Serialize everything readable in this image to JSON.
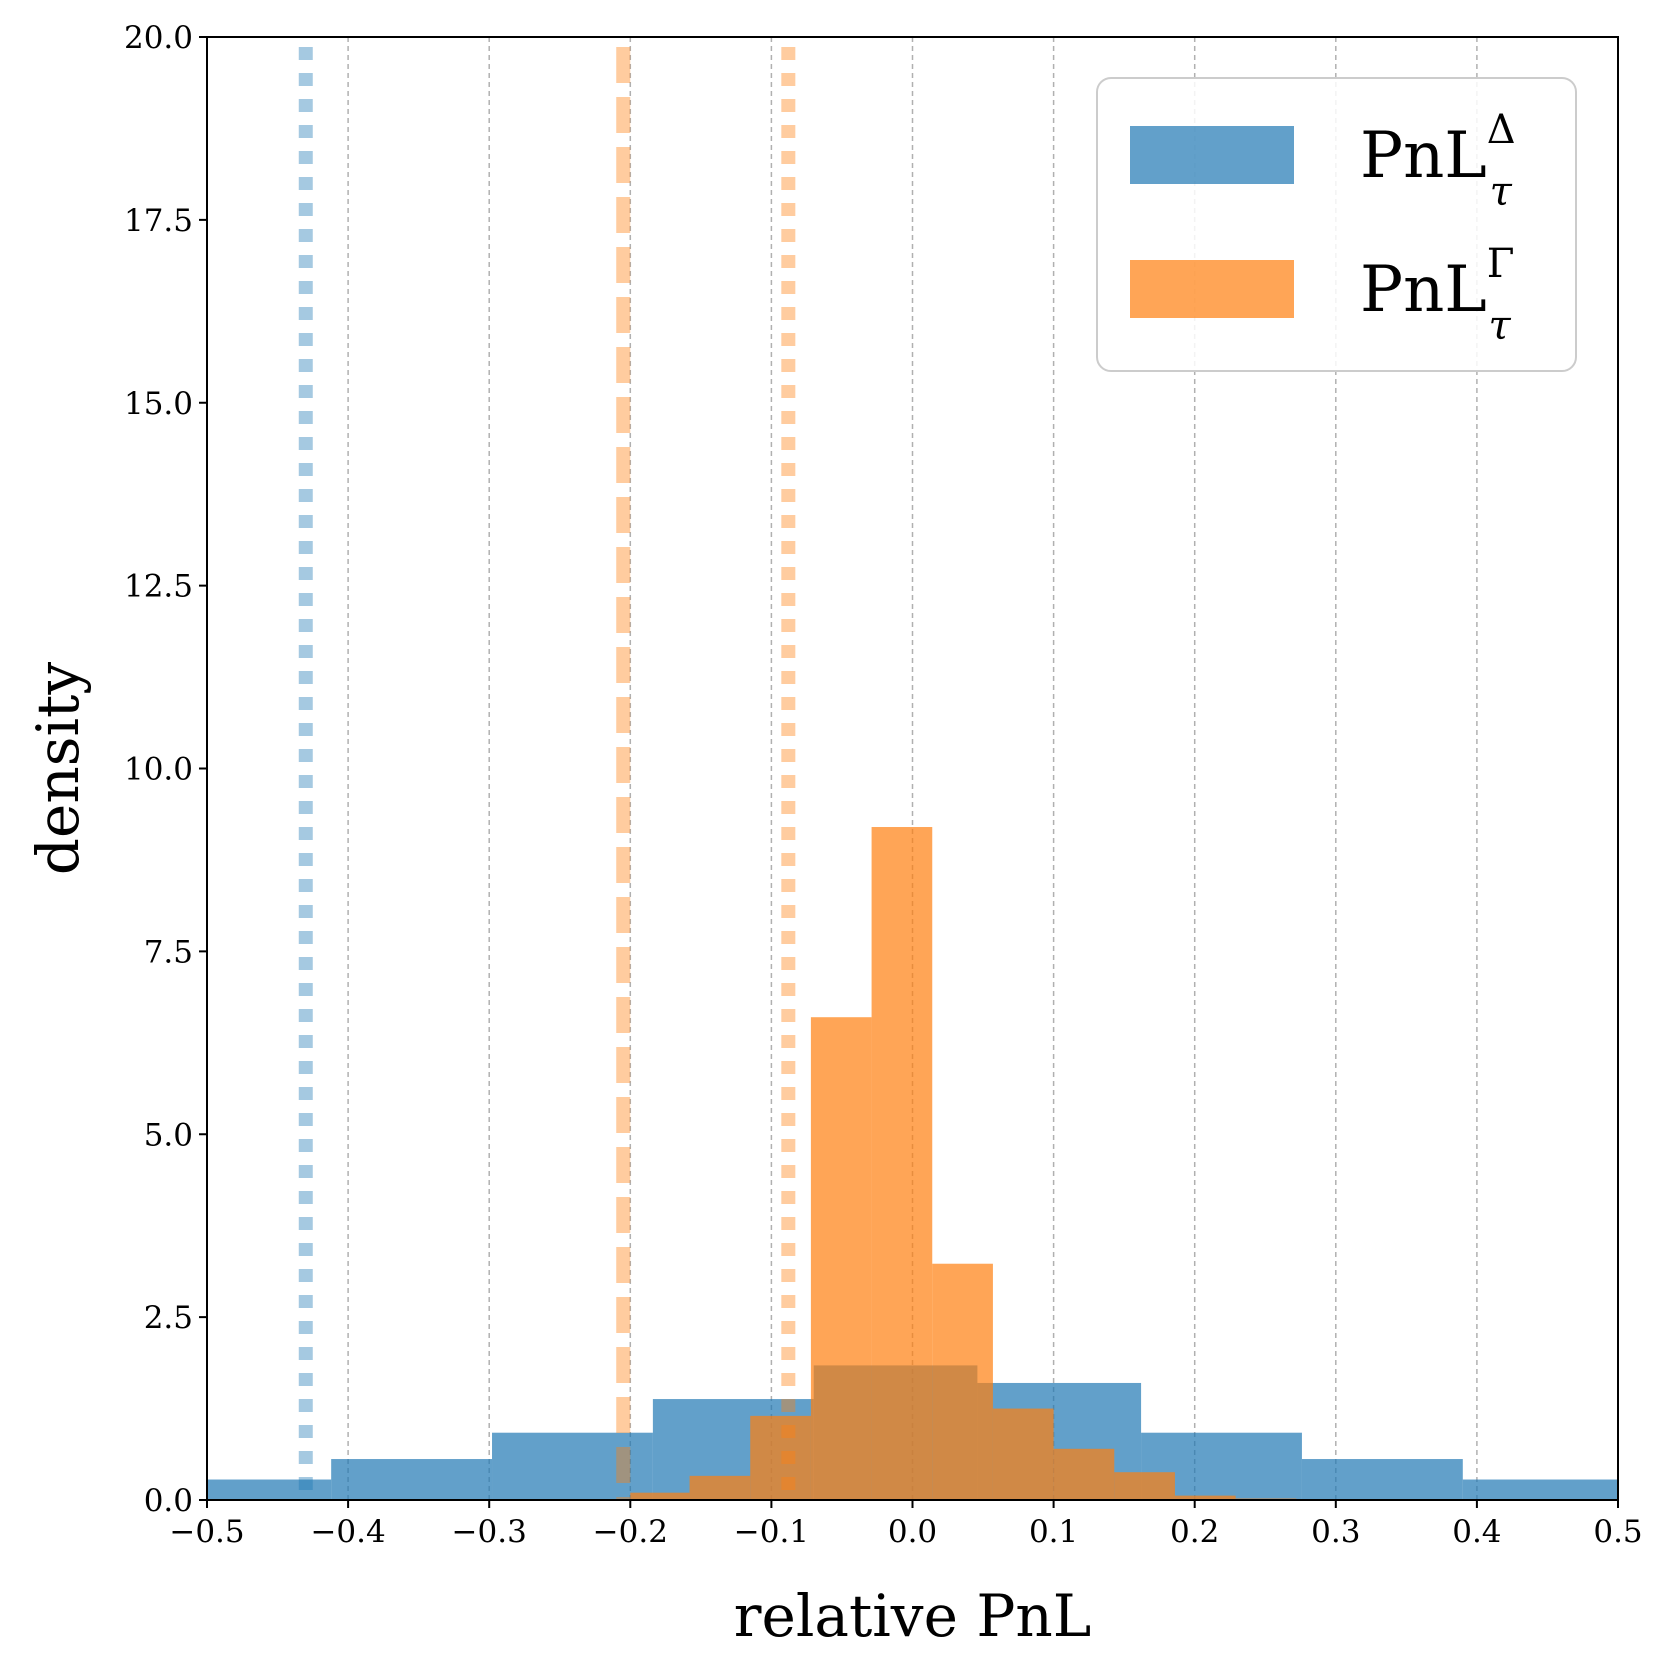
{
  "chart_data": {
    "type": "bar",
    "subtype": "histogram",
    "xlabel": "relative PnL",
    "ylabel": "density",
    "xlim": [
      -0.5,
      0.5
    ],
    "ylim": [
      0,
      20
    ],
    "xticks": [
      -0.5,
      -0.4,
      -0.3,
      -0.2,
      -0.1,
      0.0,
      0.1,
      0.2,
      0.3,
      0.4,
      0.5
    ],
    "xtick_labels": [
      "−0.5",
      "−0.4",
      "−0.3",
      "−0.2",
      "−0.1",
      "0.0",
      "0.1",
      "0.2",
      "0.3",
      "0.4",
      "0.5"
    ],
    "yticks": [
      0,
      2.5,
      5,
      7.5,
      10,
      12.5,
      15,
      17.5,
      20
    ],
    "ytick_labels": [
      "0.0",
      "2.5",
      "5.0",
      "7.5",
      "10.0",
      "12.5",
      "15.0",
      "17.5",
      "20.0"
    ],
    "grid": "x-dashed",
    "legend_placement": "top-right",
    "series": [
      {
        "name": "PnL",
        "name_sup": "Δ",
        "name_sub": "τ",
        "color": "#1f77b4",
        "opacity": 0.7,
        "bins": [
          [
            -0.5,
            -0.412,
            0.28
          ],
          [
            -0.412,
            -0.298,
            0.56
          ],
          [
            -0.298,
            -0.184,
            0.92
          ],
          [
            -0.184,
            -0.07,
            1.38
          ],
          [
            -0.07,
            0.046,
            1.84
          ],
          [
            0.046,
            0.162,
            1.6
          ],
          [
            0.162,
            0.276,
            0.92
          ],
          [
            0.276,
            0.39,
            0.56
          ],
          [
            0.39,
            0.5,
            0.28
          ]
        ],
        "vlines": [
          {
            "x": -0.43,
            "style": "dotted"
          }
        ]
      },
      {
        "name": "PnL",
        "name_sup": "Γ",
        "name_sub": "τ",
        "color": "#ff7f0e",
        "opacity": 0.7,
        "bins": [
          [
            -0.5,
            -0.2,
            0.0
          ],
          [
            -0.2,
            -0.158,
            0.1
          ],
          [
            -0.158,
            -0.115,
            0.33
          ],
          [
            -0.115,
            -0.072,
            1.15
          ],
          [
            -0.072,
            -0.029,
            6.6
          ],
          [
            -0.029,
            0.014,
            9.2
          ],
          [
            0.014,
            0.057,
            3.23
          ],
          [
            0.057,
            0.1,
            1.25
          ],
          [
            0.1,
            0.143,
            0.7
          ],
          [
            0.143,
            0.186,
            0.38
          ],
          [
            0.186,
            0.229,
            0.06
          ],
          [
            0.229,
            0.272,
            0.02
          ]
        ],
        "vlines": [
          {
            "x": -0.205,
            "style": "dashed"
          },
          {
            "x": -0.088,
            "style": "dotted"
          }
        ]
      }
    ]
  }
}
